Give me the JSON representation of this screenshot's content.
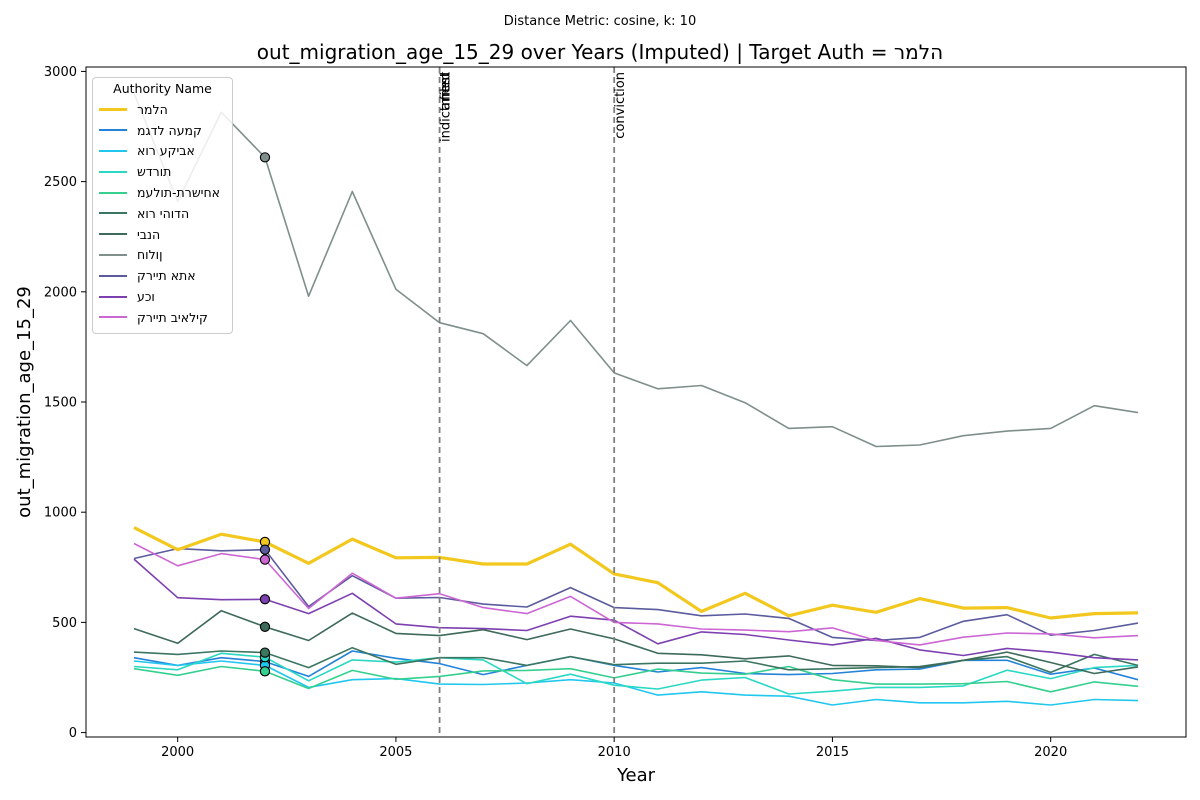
{
  "chart_data": {
    "type": "line",
    "suptitle": "Distance Metric: cosine, k: 10",
    "title": "out_migration_age_15_29 over Years (Imputed) | Target Auth = הלמר",
    "xlabel": "Year",
    "ylabel": "out_migration_age_15_29",
    "xlim": [
      1997.9,
      2023.1
    ],
    "ylim": [
      -20,
      3020
    ],
    "xticks": [
      2000,
      2005,
      2010,
      2015,
      2020
    ],
    "yticks": [
      0,
      500,
      1000,
      1500,
      2000,
      2500,
      3000
    ],
    "grid": false,
    "legend": {
      "title": "Authority Name",
      "placement": "upper-left"
    },
    "x": [
      1999,
      2000,
      2001,
      2002,
      2003,
      2004,
      2005,
      2006,
      2007,
      2008,
      2009,
      2010,
      2011,
      2012,
      2013,
      2014,
      2015,
      2016,
      2017,
      2018,
      2019,
      2020,
      2021,
      2022
    ],
    "events": [
      {
        "x": 2006,
        "labels": [
          "indictment",
          "filed",
          "arrest"
        ]
      },
      {
        "x": 2010,
        "labels": [
          "conviction"
        ]
      }
    ],
    "marker_year": 2002,
    "series": [
      {
        "name": "הלמר",
        "color": "#f2c81e",
        "width": 3.2,
        "values": [
          930,
          830,
          900,
          865,
          768,
          878,
          793,
          795,
          765,
          765,
          855,
          720,
          680,
          550,
          632,
          530,
          578,
          546,
          608,
          565,
          567,
          520,
          540,
          543
        ]
      },
      {
        "name": "קמעה לדגמ",
        "color": "#2383d9",
        "width": 1.6,
        "values": [
          340,
          305,
          340,
          322,
          255,
          370,
          337,
          313,
          263,
          305,
          345,
          305,
          275,
          295,
          268,
          263,
          268,
          285,
          288,
          328,
          328,
          265,
          293,
          240
        ]
      },
      {
        "name": "אביקע רוא",
        "color": "#21c7ee",
        "width": 1.6,
        "values": [
          325,
          305,
          325,
          305,
          205,
          240,
          245,
          220,
          218,
          225,
          240,
          225,
          170,
          185,
          170,
          165,
          125,
          150,
          135,
          135,
          142,
          125,
          150,
          145
        ]
      },
      {
        "name": "תורדש",
        "color": "#2ad8c3",
        "width": 1.6,
        "values": [
          300,
          285,
          360,
          342,
          235,
          330,
          320,
          340,
          330,
          222,
          265,
          215,
          198,
          238,
          250,
          175,
          188,
          205,
          205,
          212,
          283,
          245,
          295,
          305
        ]
      },
      {
        "name": "אחישרת-תולעמ",
        "color": "#35cf8f",
        "width": 1.6,
        "values": [
          290,
          260,
          300,
          278,
          200,
          282,
          242,
          255,
          280,
          282,
          290,
          248,
          288,
          270,
          265,
          300,
          240,
          220,
          220,
          222,
          232,
          185,
          230,
          210
        ]
      },
      {
        "name": "הדוהי רוא",
        "color": "#3b7660",
        "width": 1.6,
        "values": [
          365,
          355,
          370,
          363,
          295,
          385,
          310,
          340,
          340,
          305,
          345,
          308,
          315,
          315,
          325,
          285,
          290,
          295,
          300,
          328,
          345,
          273,
          355,
          305
        ]
      },
      {
        "name": "הנבי",
        "color": "#3e6b59",
        "width": 1.6,
        "values": [
          472,
          405,
          553,
          480,
          418,
          542,
          450,
          440,
          467,
          422,
          470,
          425,
          360,
          353,
          335,
          348,
          305,
          303,
          295,
          328,
          365,
          318,
          268,
          298
        ]
      },
      {
        "name": "ןולוח",
        "color": "#7e8f8c",
        "width": 1.6,
        "values": [
          2900,
          2410,
          2815,
          2610,
          1980,
          2455,
          2012,
          1860,
          1810,
          1665,
          1870,
          1632,
          1560,
          1575,
          1497,
          1380,
          1388,
          1298,
          1305,
          1347,
          1368,
          1380,
          1483,
          1452
        ]
      },
      {
        "name": "אתא תיירק",
        "color": "#5b5b9e",
        "width": 1.6,
        "values": [
          790,
          835,
          825,
          830,
          572,
          712,
          610,
          613,
          583,
          570,
          658,
          567,
          558,
          530,
          538,
          518,
          432,
          418,
          432,
          505,
          535,
          442,
          463,
          497
        ]
      },
      {
        "name": "וכע",
        "color": "#7d40b0",
        "width": 1.6,
        "values": [
          787,
          612,
          603,
          605,
          540,
          632,
          493,
          476,
          472,
          463,
          528,
          510,
          403,
          457,
          445,
          420,
          398,
          428,
          375,
          350,
          382,
          365,
          340,
          330
        ]
      },
      {
        "name": "קילאיב תיירק",
        "color": "#cc66d3",
        "width": 1.6,
        "values": [
          858,
          757,
          812,
          785,
          563,
          723,
          610,
          630,
          567,
          540,
          618,
          500,
          493,
          470,
          465,
          458,
          475,
          418,
          398,
          433,
          452,
          448,
          430,
          440
        ]
      }
    ]
  }
}
